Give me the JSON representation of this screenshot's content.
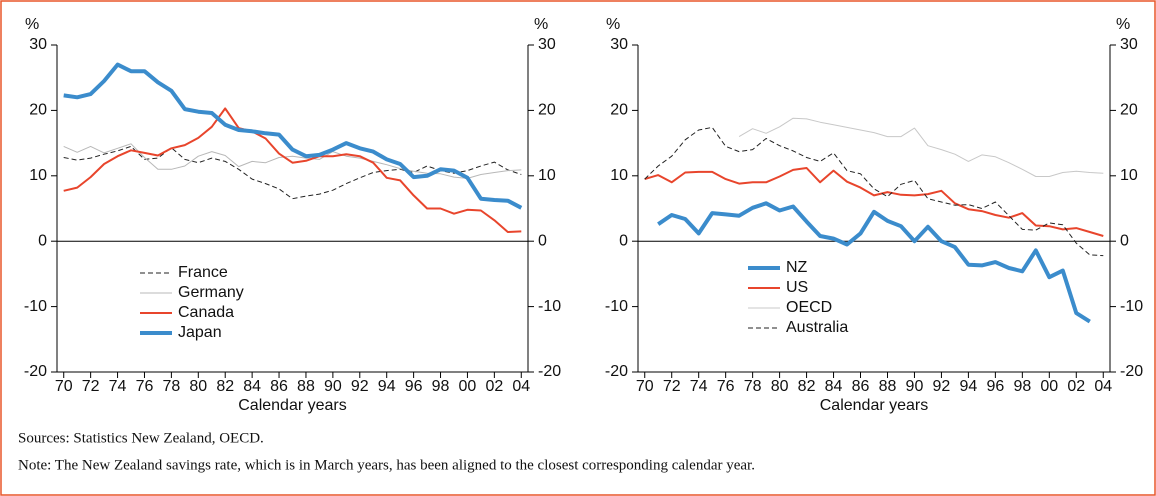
{
  "chart_data": [
    {
      "type": "line",
      "ylabel": "%",
      "y2label": "%",
      "xlabel": "Calendar years",
      "x": [
        1970,
        1971,
        1972,
        1973,
        1974,
        1975,
        1976,
        1977,
        1978,
        1979,
        1980,
        1981,
        1982,
        1983,
        1984,
        1985,
        1986,
        1987,
        1988,
        1989,
        1990,
        1991,
        1992,
        1993,
        1994,
        1995,
        1996,
        1997,
        1998,
        1999,
        2000,
        2001,
        2002,
        2003,
        2004
      ],
      "xlim": [
        1969.5,
        2004.5
      ],
      "xticks": [
        {
          "value": 1970,
          "label": "70"
        },
        {
          "value": 1972,
          "label": "72"
        },
        {
          "value": 1974,
          "label": "74"
        },
        {
          "value": 1976,
          "label": "76"
        },
        {
          "value": 1978,
          "label": "78"
        },
        {
          "value": 1980,
          "label": "80"
        },
        {
          "value": 1982,
          "label": "82"
        },
        {
          "value": 1984,
          "label": "84"
        },
        {
          "value": 1986,
          "label": "86"
        },
        {
          "value": 1988,
          "label": "88"
        },
        {
          "value": 1990,
          "label": "90"
        },
        {
          "value": 1992,
          "label": "92"
        },
        {
          "value": 1994,
          "label": "94"
        },
        {
          "value": 1996,
          "label": "96"
        },
        {
          "value": 1998,
          "label": "98"
        },
        {
          "value": 2000,
          "label": "00"
        },
        {
          "value": 2002,
          "label": "02"
        },
        {
          "value": 2004,
          "label": "04"
        }
      ],
      "ylim": [
        -20,
        30
      ],
      "yticks": [
        -20,
        -10,
        0,
        10,
        20,
        30
      ],
      "y2lim": [
        -20,
        30
      ],
      "y2ticks": [
        -20,
        -10,
        0,
        10,
        20,
        30
      ],
      "legend": "lower-left",
      "series": [
        {
          "name": "France",
          "color": "#222222",
          "dashed": true,
          "width": 1,
          "values": [
            12.8,
            12.4,
            12.7,
            13.3,
            13.8,
            14.5,
            12.5,
            12.7,
            14.3,
            12.5,
            12.0,
            12.7,
            12.2,
            11.0,
            9.5,
            8.8,
            8.0,
            6.5,
            6.9,
            7.2,
            7.8,
            8.8,
            9.7,
            10.5,
            10.8,
            11.0,
            10.5,
            11.5,
            10.8,
            10.4,
            10.8,
            11.5,
            12.1,
            10.9,
            10.2
          ]
        },
        {
          "name": "Germany",
          "color": "#b8b8b8",
          "dashed": false,
          "width": 1,
          "values": [
            14.5,
            13.6,
            14.5,
            13.5,
            14.2,
            14.9,
            12.8,
            11.0,
            11.0,
            11.5,
            13.0,
            13.7,
            13.1,
            11.4,
            12.2,
            12.0,
            12.8,
            13.0,
            12.7,
            12.5,
            13.7,
            13.0,
            12.7,
            12.2,
            11.7,
            11.1,
            10.7,
            10.4,
            10.3,
            9.8,
            9.6,
            10.2,
            10.5,
            10.8,
            10.9
          ]
        },
        {
          "name": "Canada",
          "color": "#e8452c",
          "dashed": false,
          "width": 2,
          "values": [
            7.7,
            8.2,
            9.8,
            11.8,
            13.0,
            13.9,
            13.5,
            13.1,
            14.2,
            14.7,
            15.8,
            17.5,
            20.3,
            17.3,
            16.8,
            15.7,
            13.4,
            12.0,
            12.3,
            13.0,
            13.0,
            13.3,
            13.0,
            12.0,
            9.7,
            9.3,
            7.0,
            5.0,
            5.0,
            4.2,
            4.8,
            4.7,
            3.2,
            1.4,
            1.5
          ]
        },
        {
          "name": "Japan",
          "color": "#3b8ccc",
          "dashed": false,
          "width": 4,
          "values": [
            22.3,
            22.0,
            22.5,
            24.5,
            27.0,
            26.0,
            26.0,
            24.3,
            23.0,
            20.2,
            19.8,
            19.6,
            17.8,
            17.0,
            16.8,
            16.5,
            16.3,
            14.0,
            13.0,
            13.2,
            14.0,
            15.0,
            14.2,
            13.7,
            12.5,
            11.8,
            9.8,
            10.0,
            11.0,
            10.8,
            9.7,
            6.5,
            6.3,
            6.2,
            5.1
          ]
        }
      ]
    },
    {
      "type": "line",
      "ylabel": "%",
      "y2label": "%",
      "xlabel": "Calendar years",
      "x": [
        1970,
        1971,
        1972,
        1973,
        1974,
        1975,
        1976,
        1977,
        1978,
        1979,
        1980,
        1981,
        1982,
        1983,
        1984,
        1985,
        1986,
        1987,
        1988,
        1989,
        1990,
        1991,
        1992,
        1993,
        1994,
        1995,
        1996,
        1997,
        1998,
        1999,
        2000,
        2001,
        2002,
        2003,
        2004
      ],
      "xlim": [
        1969.5,
        2004.5
      ],
      "xticks": [
        {
          "value": 1970,
          "label": "70"
        },
        {
          "value": 1972,
          "label": "72"
        },
        {
          "value": 1974,
          "label": "74"
        },
        {
          "value": 1976,
          "label": "76"
        },
        {
          "value": 1978,
          "label": "78"
        },
        {
          "value": 1980,
          "label": "80"
        },
        {
          "value": 1982,
          "label": "82"
        },
        {
          "value": 1984,
          "label": "84"
        },
        {
          "value": 1986,
          "label": "86"
        },
        {
          "value": 1988,
          "label": "88"
        },
        {
          "value": 1990,
          "label": "90"
        },
        {
          "value": 1992,
          "label": "92"
        },
        {
          "value": 1994,
          "label": "94"
        },
        {
          "value": 1996,
          "label": "96"
        },
        {
          "value": 1998,
          "label": "98"
        },
        {
          "value": 2000,
          "label": "00"
        },
        {
          "value": 2002,
          "label": "02"
        },
        {
          "value": 2004,
          "label": "04"
        }
      ],
      "ylim": [
        -20,
        30
      ],
      "yticks": [
        -20,
        -10,
        0,
        10,
        20,
        30
      ],
      "y2lim": [
        -20,
        30
      ],
      "y2ticks": [
        -20,
        -10,
        0,
        10,
        20,
        30
      ],
      "legend": "lower-left",
      "series": [
        {
          "name": "NZ",
          "color": "#3b8ccc",
          "dashed": false,
          "width": 4,
          "values": [
            null,
            2.6,
            4.0,
            3.4,
            1.2,
            4.3,
            4.1,
            3.9,
            5.1,
            5.8,
            4.7,
            5.3,
            3.0,
            0.8,
            0.4,
            -0.5,
            1.2,
            4.5,
            3.1,
            2.3,
            0.0,
            2.2,
            0.0,
            -0.9,
            -3.6,
            -3.7,
            -3.2,
            -4.1,
            -4.6,
            -1.4,
            -5.5,
            -4.5,
            -11.0,
            -12.3,
            null
          ]
        },
        {
          "name": "US",
          "color": "#e8452c",
          "dashed": false,
          "width": 2,
          "values": [
            9.5,
            10.1,
            9.0,
            10.5,
            10.6,
            10.6,
            9.5,
            8.8,
            9.0,
            9.0,
            9.9,
            10.9,
            11.2,
            9.0,
            10.8,
            9.1,
            8.2,
            7.0,
            7.5,
            7.1,
            7.0,
            7.2,
            7.7,
            5.8,
            4.9,
            4.6,
            4.0,
            3.6,
            4.3,
            2.4,
            2.3,
            1.8,
            2.0,
            1.4,
            0.8
          ]
        },
        {
          "name": "OECD",
          "color": "#c8c8c8",
          "dashed": false,
          "width": 1,
          "values": [
            null,
            null,
            null,
            null,
            null,
            null,
            null,
            16.0,
            17.2,
            16.5,
            17.5,
            18.8,
            18.7,
            18.2,
            17.8,
            17.4,
            17.0,
            16.6,
            16.0,
            16.0,
            17.3,
            14.6,
            14.0,
            13.3,
            12.2,
            13.2,
            12.9,
            12.0,
            11.0,
            9.9,
            9.9,
            10.5,
            10.7,
            10.5,
            10.4
          ]
        },
        {
          "name": "Australia",
          "color": "#222222",
          "dashed": true,
          "width": 1,
          "values": [
            9.5,
            11.5,
            13.0,
            15.5,
            17.0,
            17.4,
            14.5,
            13.7,
            14.0,
            15.7,
            14.6,
            13.8,
            12.8,
            12.2,
            13.5,
            10.8,
            10.3,
            8.0,
            6.8,
            8.7,
            9.3,
            6.5,
            6.0,
            5.5,
            5.6,
            5.0,
            6.0,
            3.9,
            1.8,
            1.7,
            2.8,
            2.5,
            -0.3,
            -2.1,
            -2.2
          ]
        }
      ]
    }
  ],
  "sources": "Sources:  Statistics New Zealand, OECD.",
  "note": "Note:  The New Zealand savings rate, which is in March years, has been aligned to the closest corresponding calendar year."
}
